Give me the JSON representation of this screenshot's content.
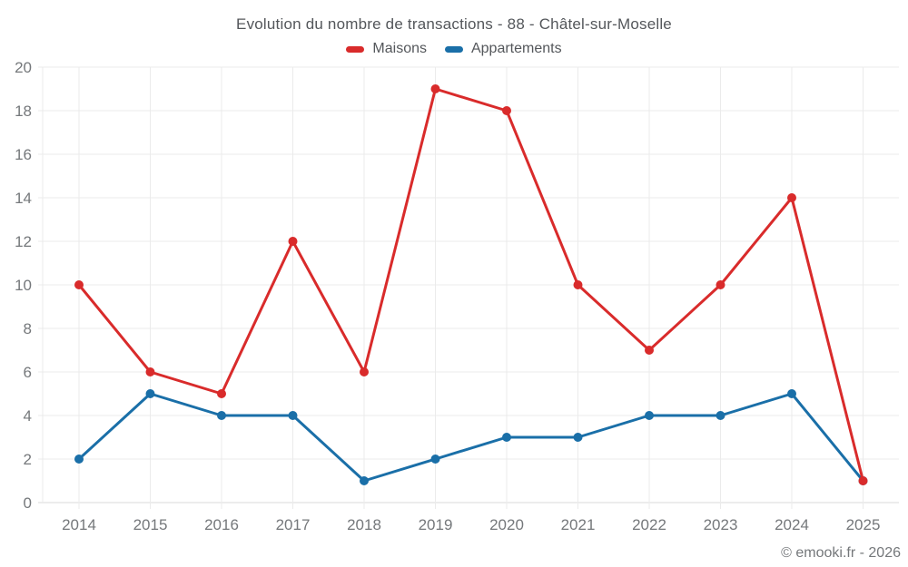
{
  "title": "Evolution du nombre de transactions - 88 - Châtel-sur-Moselle",
  "footer": {
    "copyright": "© emooki.fr - 2026"
  },
  "colors": {
    "maisons_red": "#d92b2b",
    "appartements_blue": "#1a6fa8",
    "grid": "#ebebeb",
    "axis": "#d9d9d9",
    "title_text": "#54575b",
    "tick_text": "#75787b"
  },
  "chart_data": {
    "type": "line",
    "title": "Evolution du nombre de transactions - 88 - Châtel-sur-Moselle",
    "categories": [
      "2014",
      "2015",
      "2016",
      "2017",
      "2018",
      "2019",
      "2020",
      "2021",
      "2022",
      "2023",
      "2024",
      "2025"
    ],
    "series": [
      {
        "name": "Maisons",
        "color": "#d92b2b",
        "values": [
          10,
          6,
          5,
          12,
          6,
          19,
          18,
          10,
          7,
          10,
          14,
          1
        ]
      },
      {
        "name": "Appartements",
        "color": "#1a6fa8",
        "values": [
          2,
          5,
          4,
          4,
          1,
          2,
          3,
          3,
          4,
          4,
          5,
          1
        ]
      }
    ],
    "xlabel": "",
    "ylabel": "",
    "ylim": [
      0,
      20
    ],
    "yticks": [
      0,
      2,
      4,
      6,
      8,
      10,
      12,
      14,
      16,
      18,
      20
    ],
    "grid": true,
    "legend_position": "top",
    "marker": "circle"
  }
}
